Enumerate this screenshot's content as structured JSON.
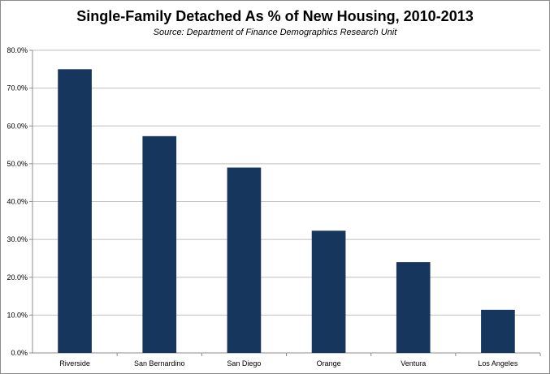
{
  "chart_data": {
    "type": "bar",
    "title": "Single-Family Detached As % of New Housing, 2010-2013",
    "subtitle": "Source: Department of Finance Demographics Research Unit",
    "xlabel": "",
    "ylabel": "",
    "categories": [
      "Riverside",
      "San Bernardino",
      "San Diego",
      "Orange",
      "Ventura",
      "Los Angeles"
    ],
    "values": [
      75.0,
      57.3,
      49.0,
      32.3,
      24.0,
      11.4
    ],
    "ylim": [
      0,
      80
    ],
    "yticks": [
      "0.0%",
      "10.0%",
      "20.0%",
      "30.0%",
      "40.0%",
      "50.0%",
      "60.0%",
      "70.0%",
      "80.0%"
    ],
    "grid": true,
    "legend": "none",
    "bar_color": "#17365d"
  }
}
